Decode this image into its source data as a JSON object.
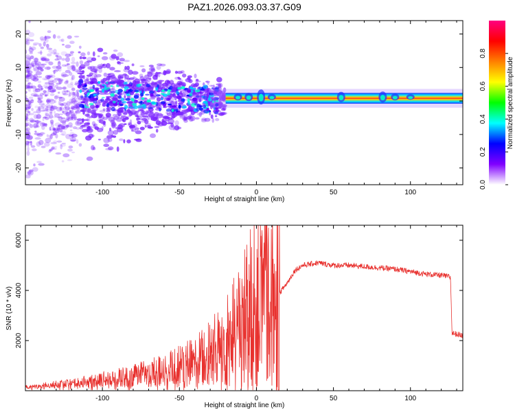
{
  "title": "PAZ1.2026.093.03.37.G09",
  "colors": {
    "snr_line": "#e8312e",
    "ridge_low": "#1e2dff",
    "ridge_high": "#ff2a2a",
    "scatter": "#7a22ff",
    "frame": "#000000"
  },
  "chart_data": [
    {
      "type": "heatmap",
      "xlabel": "Height of straight line (km)",
      "ylabel": "Frequency (Hz)",
      "xlim": [
        -150,
        134
      ],
      "ylim": [
        -25,
        24
      ],
      "xticks": [
        -100,
        -50,
        0,
        50,
        100
      ],
      "xtick_labels": [
        "-100",
        "-50",
        "0",
        "50",
        "100"
      ],
      "yticks": [
        -20,
        -10,
        0,
        10,
        20
      ],
      "ytick_labels": [
        "-20",
        "-10",
        "0",
        "10",
        "20"
      ],
      "colorbar": {
        "label": "Normalized spectral amplitude",
        "range": [
          0,
          1
        ],
        "ticks": [
          0.0,
          0.2,
          0.4,
          0.6,
          0.8
        ],
        "tick_labels": [
          "0.0",
          "0.2",
          "0.4",
          "0.6",
          "0.8"
        ],
        "colors": [
          "#ffffff",
          "#8000ff",
          "#0000ff",
          "#00ffff",
          "#00ff00",
          "#ffff00",
          "#ff8000",
          "#ff0000",
          "#ff0080"
        ]
      },
      "ridge_frequency_hz": 0.8,
      "ridge_start_km": -30,
      "diffuse_region_end_km": -20
    },
    {
      "type": "line",
      "xlabel": "Height of straight line (km)",
      "ylabel": "SNR (10 * v/v)",
      "xlim": [
        -150,
        134
      ],
      "ylim": [
        0,
        6600
      ],
      "xticks": [
        -100,
        -50,
        0,
        50,
        100
      ],
      "xtick_labels": [
        "-100",
        "-50",
        "0",
        "50",
        "100"
      ],
      "yticks": [
        2000,
        4000,
        6000
      ],
      "ytick_labels": [
        "2000",
        "4000",
        "6000"
      ],
      "profile": {
        "x": [
          -150,
          -120,
          -100,
          -80,
          -60,
          -40,
          -30,
          -20,
          -10,
          0,
          5,
          10,
          15,
          20,
          25,
          30,
          40,
          50,
          60,
          70,
          80,
          90,
          100,
          110,
          120,
          125,
          126,
          127,
          134
        ],
        "y": [
          150,
          300,
          450,
          600,
          800,
          1150,
          1500,
          1900,
          2700,
          3500,
          3800,
          3500,
          3900,
          4300,
          4800,
          5000,
          5100,
          5000,
          5000,
          4950,
          4900,
          4850,
          4750,
          4650,
          4600,
          4550,
          4500,
          2300,
          2200
        ]
      }
    }
  ]
}
